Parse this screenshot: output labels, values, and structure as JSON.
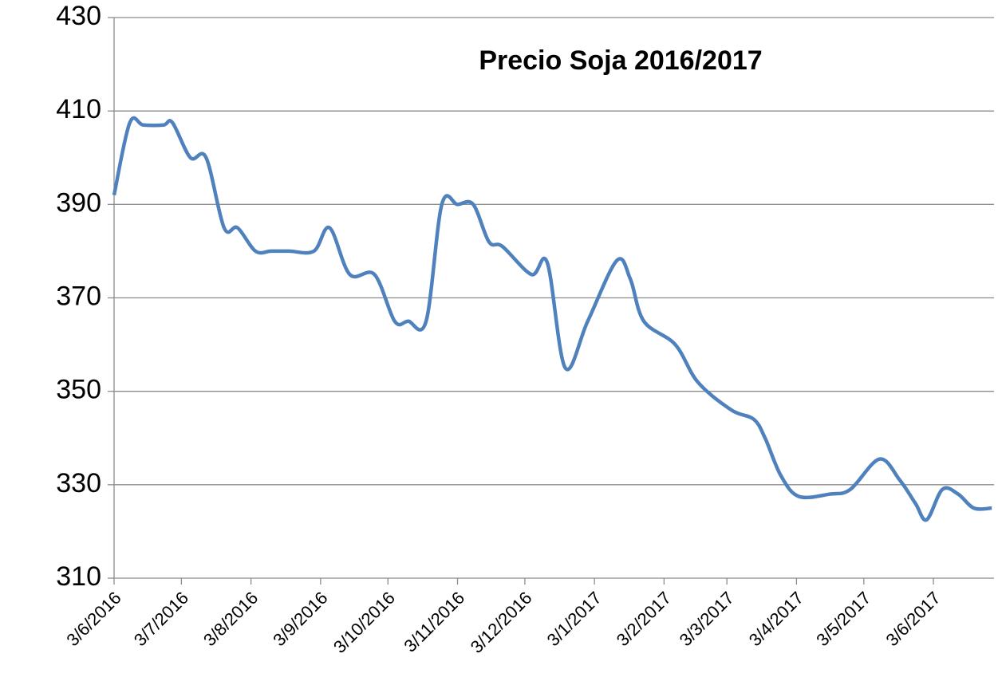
{
  "chart_data": {
    "type": "line",
    "title": "Precio Soja 2016/2017",
    "x": [
      "2016-06-03",
      "2016-06-10",
      "2016-06-16",
      "2016-06-25",
      "2016-06-29",
      "2016-07-07",
      "2016-07-14",
      "2016-07-22",
      "2016-07-28",
      "2016-08-05",
      "2016-08-12",
      "2016-08-20",
      "2016-08-31",
      "2016-09-07",
      "2016-09-16",
      "2016-09-27",
      "2016-10-06",
      "2016-10-12",
      "2016-10-20",
      "2016-10-27",
      "2016-11-03",
      "2016-11-10",
      "2016-11-17",
      "2016-11-23",
      "2016-12-06",
      "2016-12-13",
      "2016-12-21",
      "2016-12-31",
      "2017-01-13",
      "2017-01-19",
      "2017-01-25",
      "2017-02-08",
      "2017-02-18",
      "2017-03-05",
      "2017-03-15",
      "2017-03-20",
      "2017-03-27",
      "2017-04-04",
      "2017-04-18",
      "2017-04-27",
      "2017-05-10",
      "2017-05-19",
      "2017-05-26",
      "2017-05-31",
      "2017-06-07",
      "2017-06-14",
      "2017-06-21",
      "2017-06-29"
    ],
    "series": [
      {
        "color": "#4f81bd",
        "values": [
          392,
          407.5,
          407,
          407,
          407.5,
          400,
          400,
          385,
          385,
          380,
          380,
          380,
          380,
          385,
          375,
          375,
          365,
          365,
          365,
          390,
          390,
          390,
          382,
          381,
          375,
          377.5,
          355,
          365,
          378,
          374,
          365,
          360,
          352,
          346,
          344,
          340,
          332,
          327.5,
          328,
          329,
          335.5,
          331,
          326,
          322.5,
          329,
          328,
          325,
          325
        ]
      }
    ],
    "xlim": [
      "2016-06-03",
      "2017-06-30"
    ],
    "xticks": [
      {
        "value": "2016-06-03",
        "label": "3/6/2016"
      },
      {
        "value": "2016-07-03",
        "label": "3/7/2016"
      },
      {
        "value": "2016-08-03",
        "label": "3/8/2016"
      },
      {
        "value": "2016-09-03",
        "label": "3/9/2016"
      },
      {
        "value": "2016-10-03",
        "label": "3/10/2016"
      },
      {
        "value": "2016-11-03",
        "label": "3/11/2016"
      },
      {
        "value": "2016-12-03",
        "label": "3/12/2016"
      },
      {
        "value": "2017-01-03",
        "label": "3/1/2017"
      },
      {
        "value": "2017-02-03",
        "label": "3/2/2017"
      },
      {
        "value": "2017-03-03",
        "label": "3/3/2017"
      },
      {
        "value": "2017-04-03",
        "label": "3/4/2017"
      },
      {
        "value": "2017-05-03",
        "label": "3/5/2017"
      },
      {
        "value": "2017-06-03",
        "label": "3/6/2017"
      }
    ],
    "ylim": [
      310,
      430
    ],
    "yticks": [
      310,
      330,
      350,
      370,
      390,
      410,
      430
    ],
    "grid": true
  }
}
